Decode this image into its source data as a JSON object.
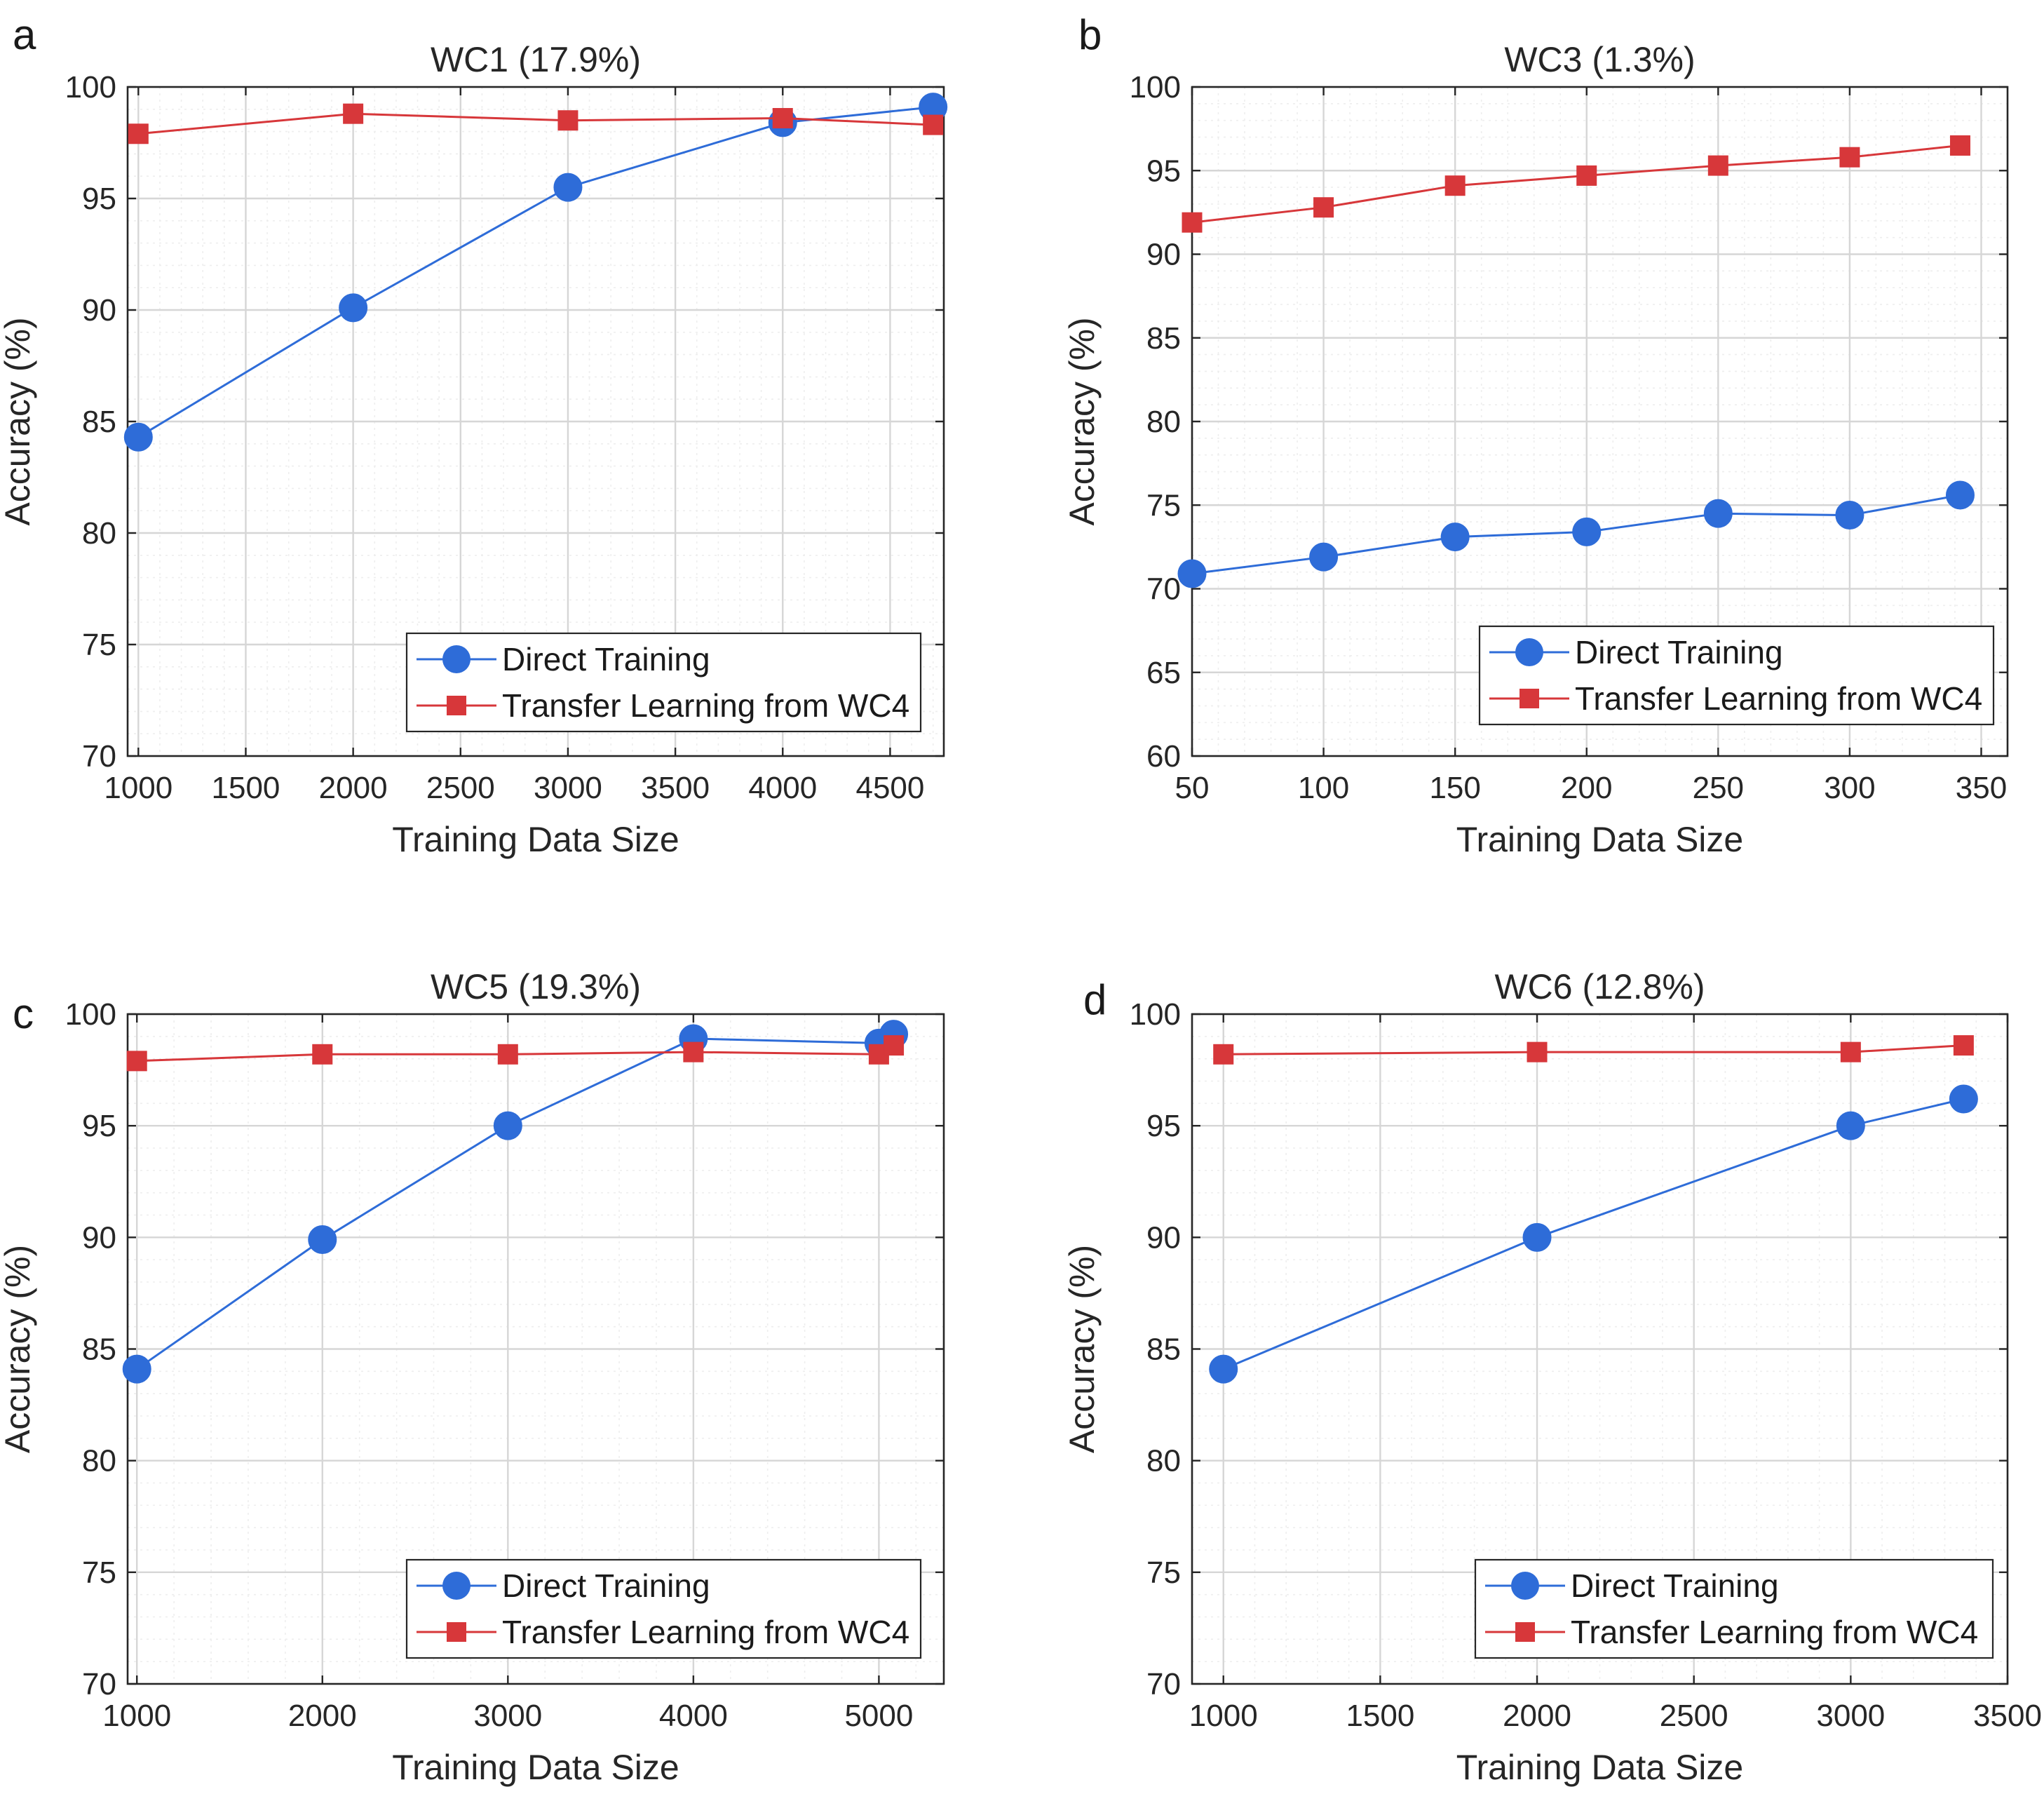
{
  "chart_data": [
    {
      "panel": "a",
      "type": "line",
      "title": "WC1 (17.9%)",
      "xlabel": "Training Data Size",
      "ylabel": "Accuracy (%)",
      "xlim": [
        950,
        4750
      ],
      "ylim": [
        70,
        100
      ],
      "xticks": [
        1000,
        1500,
        2000,
        2500,
        3000,
        3500,
        4000,
        4500
      ],
      "yticks": [
        70,
        75,
        80,
        85,
        90,
        95,
        100
      ],
      "grid": true,
      "legend_position": "bottom-right",
      "series": [
        {
          "name": "Direct Training",
          "color": "#2e6cd8",
          "marker": "circle",
          "x": [
            1000,
            2000,
            3000,
            4000,
            4700
          ],
          "values": [
            84.3,
            90.1,
            95.5,
            98.4,
            99.1
          ]
        },
        {
          "name": "Transfer Learning from WC4",
          "color": "#d7373a",
          "marker": "square",
          "x": [
            1000,
            2000,
            3000,
            4000,
            4700
          ],
          "values": [
            97.9,
            98.8,
            98.5,
            98.6,
            98.3
          ]
        }
      ]
    },
    {
      "panel": "b",
      "type": "line",
      "title": "WC3 (1.3%)",
      "xlabel": "Training Data Size",
      "ylabel": "Accuracy (%)",
      "xlim": [
        50,
        360
      ],
      "ylim": [
        60,
        100
      ],
      "xticks": [
        50,
        100,
        150,
        200,
        250,
        300,
        350
      ],
      "yticks": [
        60,
        65,
        70,
        75,
        80,
        85,
        90,
        95,
        100
      ],
      "grid": true,
      "legend_position": "bottom-right",
      "series": [
        {
          "name": "Direct Training",
          "color": "#2e6cd8",
          "marker": "circle",
          "x": [
            50,
            100,
            150,
            200,
            250,
            300,
            342
          ],
          "values": [
            70.9,
            71.9,
            73.1,
            73.4,
            74.5,
            74.4,
            75.6
          ]
        },
        {
          "name": "Transfer Learning from WC4",
          "color": "#d7373a",
          "marker": "square",
          "x": [
            50,
            100,
            150,
            200,
            250,
            300,
            342
          ],
          "values": [
            91.9,
            92.8,
            94.1,
            94.7,
            95.3,
            95.8,
            96.5
          ]
        }
      ]
    },
    {
      "panel": "c",
      "type": "line",
      "title": "WC5 (19.3%)",
      "xlabel": "Training Data Size",
      "ylabel": "Accuracy (%)",
      "xlim": [
        950,
        5350
      ],
      "ylim": [
        70,
        100
      ],
      "xticks": [
        1000,
        2000,
        3000,
        4000,
        5000
      ],
      "yticks": [
        70,
        75,
        80,
        85,
        90,
        95,
        100
      ],
      "grid": true,
      "legend_position": "bottom-right",
      "series": [
        {
          "name": "Direct Training",
          "color": "#2e6cd8",
          "marker": "circle",
          "x": [
            1000,
            2000,
            3000,
            4000,
            5000,
            5080
          ],
          "values": [
            84.1,
            89.9,
            95.0,
            98.9,
            98.7,
            99.1
          ]
        },
        {
          "name": "Transfer Learning from WC4",
          "color": "#d7373a",
          "marker": "square",
          "x": [
            1000,
            2000,
            3000,
            4000,
            5000,
            5080
          ],
          "values": [
            97.9,
            98.2,
            98.2,
            98.3,
            98.2,
            98.6
          ]
        }
      ]
    },
    {
      "panel": "d",
      "type": "line",
      "title": "WC6 (12.8%)",
      "xlabel": "Training Data Size",
      "ylabel": "Accuracy (%)",
      "xlim": [
        900,
        3500
      ],
      "ylim": [
        70,
        100
      ],
      "xticks": [
        1000,
        1500,
        2000,
        2500,
        3000,
        3500
      ],
      "yticks": [
        70,
        75,
        80,
        85,
        90,
        95,
        100
      ],
      "grid": true,
      "legend_position": "bottom-right",
      "series": [
        {
          "name": "Direct Training",
          "color": "#2e6cd8",
          "marker": "circle",
          "x": [
            1000,
            2000,
            3000,
            3360
          ],
          "values": [
            84.1,
            90.0,
            95.0,
            96.2
          ]
        },
        {
          "name": "Transfer Learning from WC4",
          "color": "#d7373a",
          "marker": "square",
          "x": [
            1000,
            2000,
            3000,
            3360
          ],
          "values": [
            98.2,
            98.3,
            98.3,
            98.6
          ]
        }
      ]
    }
  ]
}
